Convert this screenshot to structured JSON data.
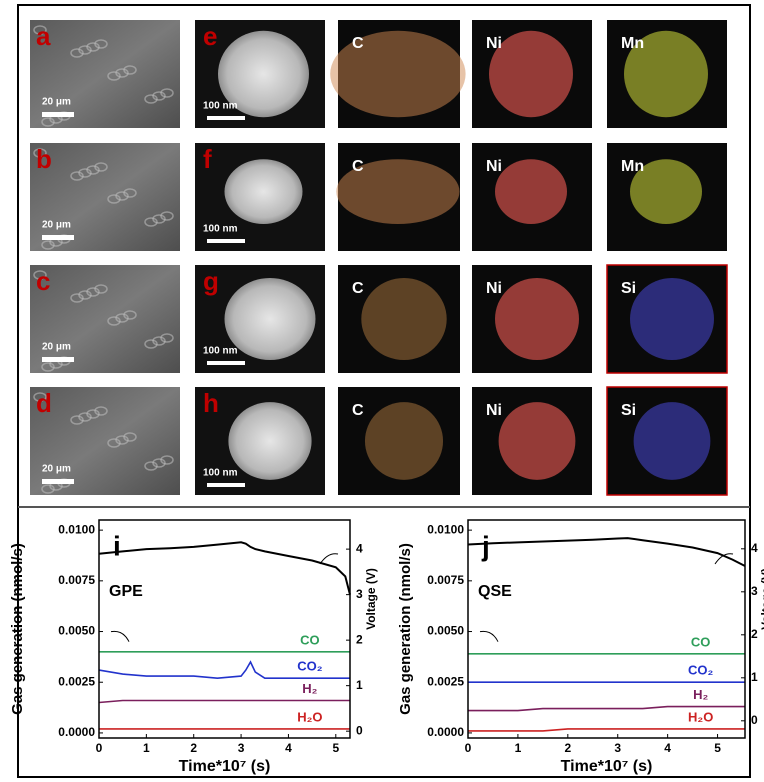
{
  "micrographs": {
    "rows": [
      {
        "sem_label": "a",
        "sem_scale": "20 μm",
        "tem_label": "e",
        "tem_scale": "100 nm",
        "maps": [
          "C",
          "Ni",
          "Mn"
        ]
      },
      {
        "sem_label": "b",
        "sem_scale": "20 μm",
        "tem_label": "f",
        "tem_scale": "100 nm",
        "maps": [
          "C",
          "Ni",
          "Mn"
        ]
      },
      {
        "sem_label": "c",
        "sem_scale": "20 μm",
        "tem_label": "g",
        "tem_scale": "100 nm",
        "maps": [
          "C",
          "Ni",
          "Si"
        ]
      },
      {
        "sem_label": "d",
        "sem_scale": "20 μm",
        "tem_label": "h",
        "tem_scale": "100 nm",
        "maps": [
          "C",
          "Ni",
          "Si"
        ]
      }
    ]
  },
  "chart_data": [
    {
      "type": "line",
      "panel_label": "i",
      "sample_label": "GPE",
      "x_label": "Time*10⁷ (s)",
      "y_label": "Gas generation (nmol/s)",
      "y2_label": "Voltage (V)",
      "xlim": [
        0,
        5.3
      ],
      "xticks": [
        0,
        1,
        2,
        3,
        4,
        5
      ],
      "ylim": [
        -0.00025,
        0.0105
      ],
      "yticks": [
        {
          "value": 0,
          "label": "0.0000"
        },
        0.0025,
        {
          "value": 0.005,
          "label": "0.0050"
        },
        0.0075,
        {
          "value": 0.01,
          "label": "0.0100"
        }
      ],
      "y2lim": [
        -0.15,
        4.64
      ],
      "y2ticks": [
        0,
        1,
        2,
        3,
        4
      ],
      "x": [
        0,
        0.5,
        1,
        1.5,
        2,
        2.5,
        3,
        3.1,
        3.2,
        3.3,
        3.5,
        4,
        4.5,
        5,
        5.2,
        5.3
      ],
      "series": [
        {
          "name": "CO",
          "color": "#2e9e5a",
          "values": [
            0.004,
            0.004,
            0.004,
            0.004,
            0.004,
            0.004,
            0.004,
            0.004,
            0.004,
            0.004,
            0.004,
            0.004,
            0.004,
            0.004,
            0.004,
            0.004
          ]
        },
        {
          "name": "CO₂",
          "color": "#2233cc",
          "values": [
            0.0031,
            0.0029,
            0.0028,
            0.0028,
            0.0028,
            0.0027,
            0.0028,
            0.0031,
            0.0035,
            0.003,
            0.0027,
            0.0027,
            0.0027,
            0.0027,
            0.0027,
            0.0027
          ]
        },
        {
          "name": "H₂",
          "color": "#7a1f5c",
          "values": [
            0.0015,
            0.0016,
            0.0016,
            0.0016,
            0.0016,
            0.0016,
            0.0016,
            0.0016,
            0.0016,
            0.0016,
            0.0016,
            0.0016,
            0.0016,
            0.0016,
            0.0016,
            0.0016
          ]
        },
        {
          "name": "H₂O",
          "color": "#cc2222",
          "values": [
            0.0002,
            0.0002,
            0.0002,
            0.0002,
            0.0002,
            0.0002,
            0.0002,
            0.0002,
            0.0002,
            0.0002,
            0.0002,
            0.0002,
            0.0002,
            0.0002,
            0.0002,
            0.0002
          ]
        },
        {
          "color": "#000000",
          "axis": "y2",
          "values": [
            3.9,
            3.95,
            4.0,
            4.02,
            4.05,
            4.1,
            4.15,
            4.12,
            4.05,
            4.0,
            3.95,
            3.85,
            3.75,
            3.6,
            3.4,
            3.0
          ]
        }
      ]
    },
    {
      "type": "line",
      "panel_label": "j",
      "sample_label": "QSE",
      "x_label": "Time*10⁷ (s)",
      "y_label": "Gas generation (nmol/s)",
      "y2_label": "Voltage (V)",
      "xlim": [
        0,
        5.55
      ],
      "xticks": [
        0,
        1,
        2,
        3,
        4,
        5
      ],
      "ylim": [
        -0.00025,
        0.0105
      ],
      "yticks": [
        {
          "value": 0,
          "label": "0.0000"
        },
        0.0025,
        {
          "value": 0.005,
          "label": "0.0050"
        },
        0.0075,
        {
          "value": 0.01,
          "label": "0.0100"
        }
      ],
      "y2lim": [
        -0.4,
        4.67
      ],
      "y2ticks": [
        0,
        1,
        2,
        3,
        4
      ],
      "x": [
        0,
        0.5,
        1,
        1.5,
        2,
        2.5,
        3,
        3.2,
        3.5,
        4,
        4.5,
        5,
        5.3,
        5.55
      ],
      "series": [
        {
          "name": "CO",
          "color": "#2e9e5a",
          "values": [
            0.0039,
            0.0039,
            0.0039,
            0.0039,
            0.0039,
            0.0039,
            0.0039,
            0.0039,
            0.0039,
            0.0039,
            0.0039,
            0.0039,
            0.0039,
            0.0039
          ]
        },
        {
          "name": "CO₂",
          "color": "#2233cc",
          "values": [
            0.0025,
            0.0025,
            0.0025,
            0.0025,
            0.0025,
            0.0025,
            0.0025,
            0.0025,
            0.0025,
            0.0025,
            0.0025,
            0.0025,
            0.0025,
            0.0025
          ]
        },
        {
          "name": "H₂",
          "color": "#7a1f5c",
          "values": [
            0.0011,
            0.0011,
            0.0011,
            0.0012,
            0.0012,
            0.0012,
            0.0012,
            0.0012,
            0.0012,
            0.0013,
            0.0013,
            0.0013,
            0.0013,
            0.0013
          ]
        },
        {
          "name": "H₂O",
          "color": "#cc2222",
          "values": [
            0.0001,
            0.0001,
            0.0001,
            0.0001,
            0.0002,
            0.0002,
            0.0002,
            0.0002,
            0.0002,
            0.0002,
            0.0002,
            0.0002,
            0.0002,
            0.0002
          ]
        },
        {
          "color": "#000000",
          "axis": "y2",
          "values": [
            4.1,
            4.13,
            4.15,
            4.17,
            4.19,
            4.21,
            4.24,
            4.25,
            4.2,
            4.12,
            4.03,
            3.9,
            3.75,
            3.6
          ]
        }
      ]
    }
  ]
}
